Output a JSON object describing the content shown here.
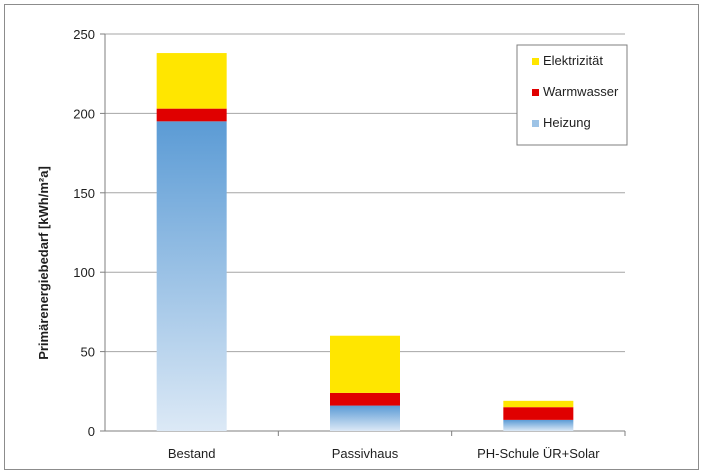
{
  "chart_data": {
    "type": "bar",
    "stacked": true,
    "title": "",
    "xlabel": "",
    "ylabel": "Primärenergiebedarf [kWh/m²a]",
    "ylim": [
      0,
      250
    ],
    "yticks": [
      0,
      50,
      100,
      150,
      200,
      250
    ],
    "grid": true,
    "legend_position": "top-right",
    "categories": [
      "Bestand",
      "Passivhaus",
      "PH-Schule ÜR+Solar"
    ],
    "series": [
      {
        "name": "Heizung",
        "values": [
          195,
          16,
          7
        ],
        "color": "#9dc3e6",
        "color_dark": "#5b9bd5"
      },
      {
        "name": "Warmwasser",
        "values": [
          8,
          8,
          8
        ],
        "color": "#e00000"
      },
      {
        "name": "Elektrizität",
        "values": [
          35,
          36,
          4
        ],
        "color": "#ffe600"
      }
    ],
    "legend_order": [
      "Elektrizität",
      "Warmwasser",
      "Heizung"
    ]
  }
}
